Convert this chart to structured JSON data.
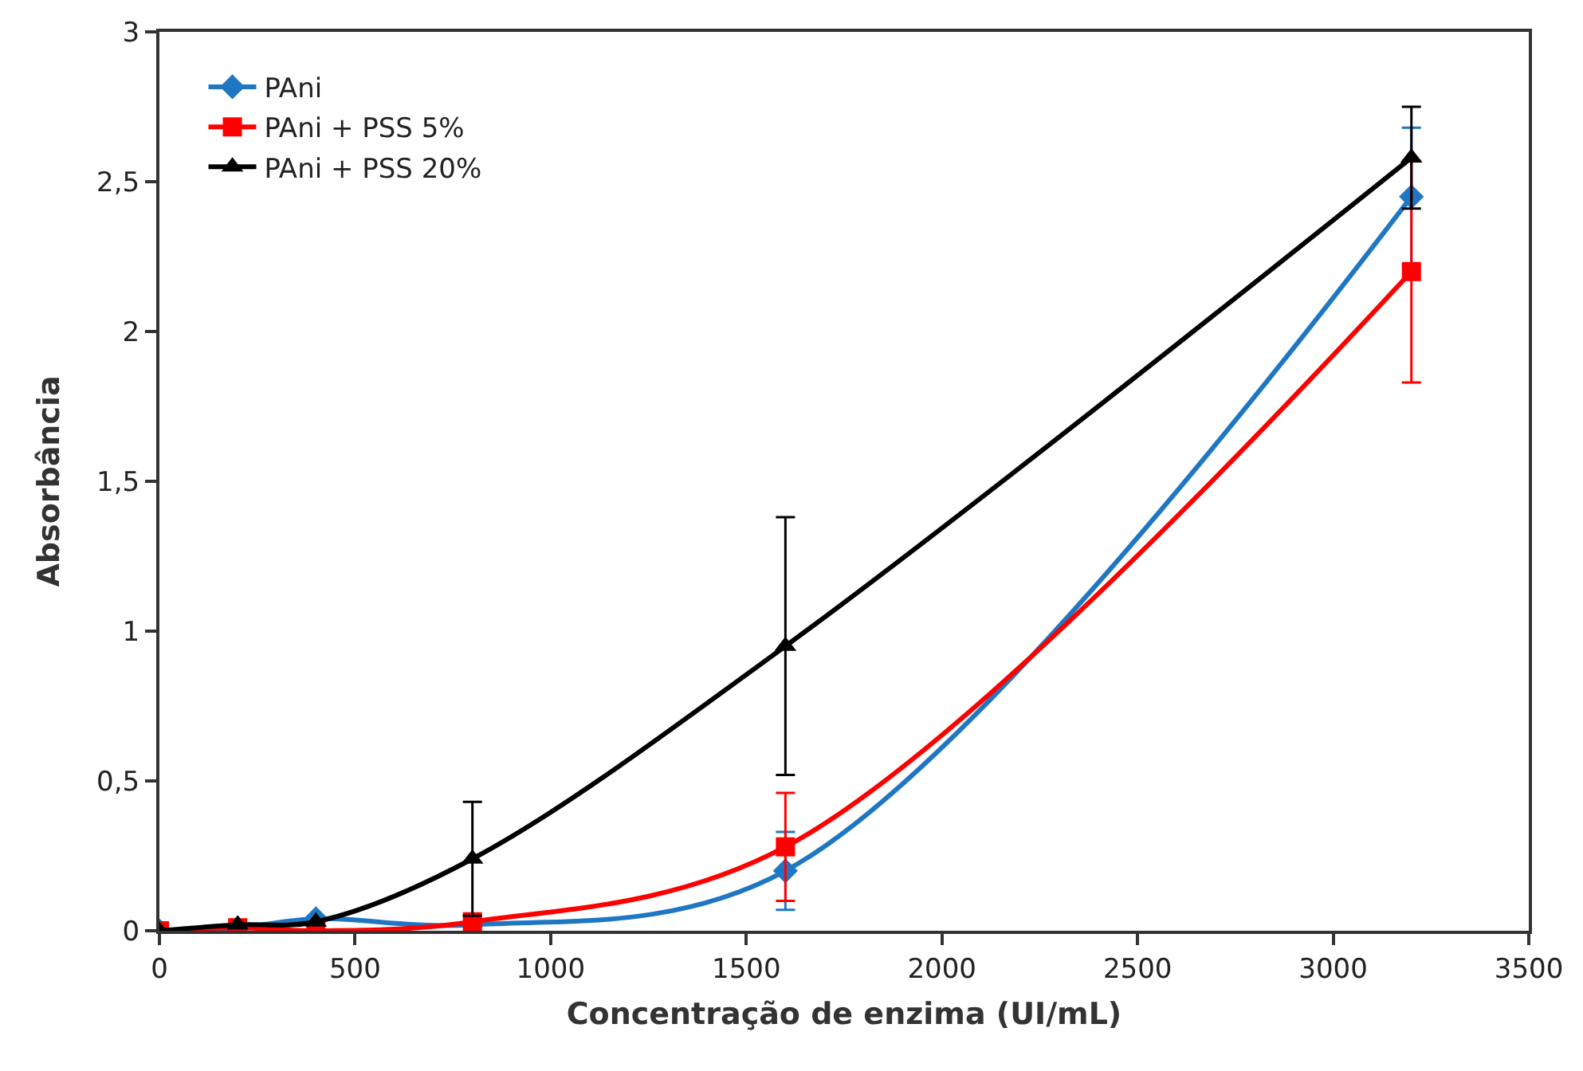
{
  "chart_data": {
    "type": "line",
    "xlabel": "Concentração de enzima (UI/mL)",
    "ylabel": "Absorbância",
    "x": [
      0,
      200,
      400,
      800,
      1600,
      3200
    ],
    "series": [
      {
        "name": "PAni",
        "color": "#1f77c4",
        "marker": "diamond",
        "values": [
          0,
          0.01,
          0.04,
          0.02,
          0.2,
          2.45
        ],
        "errors": [
          null,
          null,
          null,
          null,
          0.13,
          0.23
        ]
      },
      {
        "name": "PAni + PSS 5%",
        "color": "#ff0000",
        "marker": "square",
        "values": [
          0,
          0.01,
          0,
          0.03,
          0.28,
          2.2
        ],
        "errors": [
          null,
          null,
          null,
          null,
          0.18,
          0.37
        ]
      },
      {
        "name": "PAni + PSS 20%",
        "color": "#000000",
        "marker": "triangle",
        "values": [
          0,
          0.02,
          0.03,
          0.24,
          0.95,
          2.58
        ],
        "errors": [
          null,
          null,
          null,
          0.19,
          0.43,
          0.17
        ]
      }
    ],
    "xlim": [
      0,
      3500
    ],
    "xticks": [
      0,
      500,
      1000,
      1500,
      2000,
      2500,
      3000,
      3500
    ],
    "ylim": [
      0,
      3
    ],
    "yticks": [
      0,
      {
        "value": 0.5,
        "label": "0,5"
      },
      1,
      {
        "value": 1.5,
        "label": "1,5"
      },
      2,
      {
        "value": 2.5,
        "label": "2,5"
      },
      3
    ],
    "grid": false,
    "legend": "top left",
    "line_style": "solid"
  }
}
